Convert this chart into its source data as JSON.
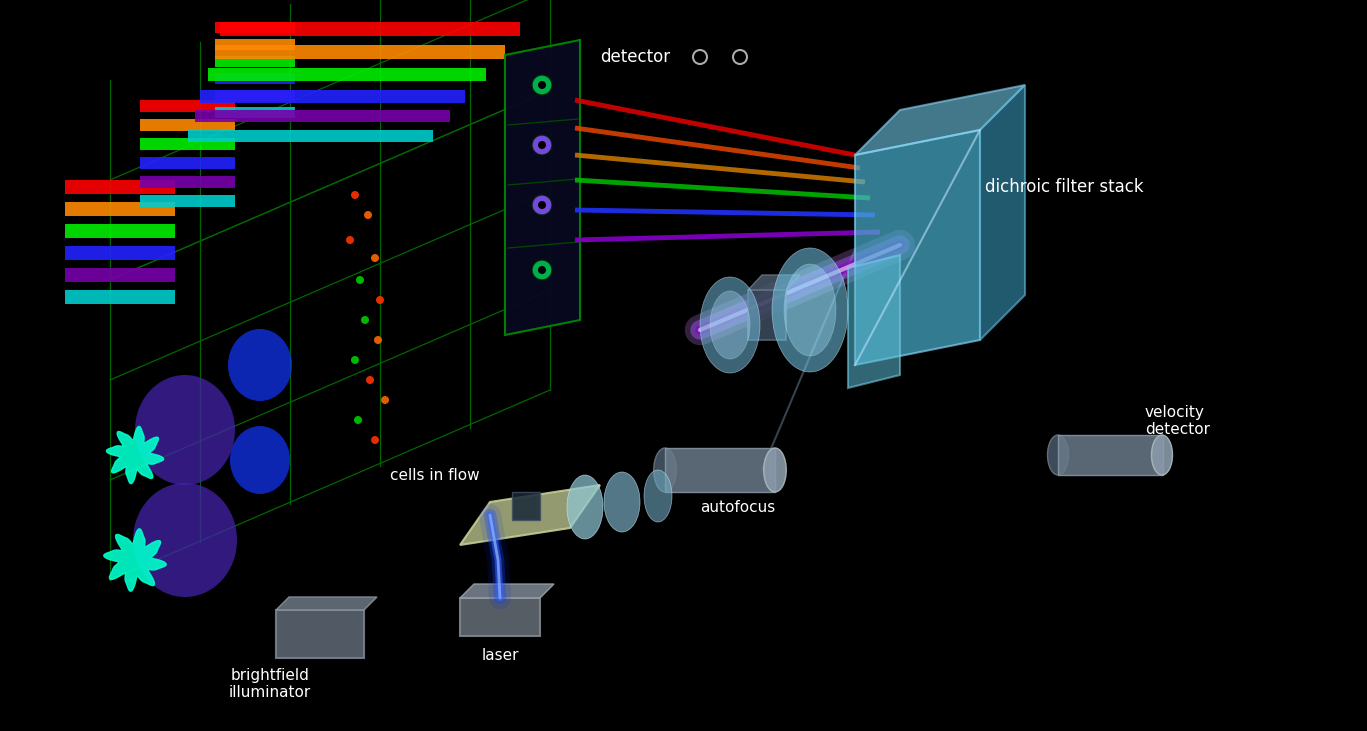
{
  "bg_color": "#000000",
  "text_color": "#ffffff",
  "labels": {
    "detector": "detector",
    "dichroic": "dichroic filter stack",
    "velocity": "velocity\ndetector",
    "autofocus": "autofocus",
    "cells": "cells in flow",
    "brightfield": "brightfield\nilluminator",
    "laser": "laser"
  },
  "channel_colors": [
    "#ff0000",
    "#ff8800",
    "#00ee00",
    "#2222ff",
    "#7700aa",
    "#00cccc"
  ],
  "green_grid_color": "#006600",
  "lens_color": "#80d4ff",
  "cube_color": "#60c0e0",
  "gray_color": "#708090",
  "font_size": 11,
  "label_font_size": 11
}
